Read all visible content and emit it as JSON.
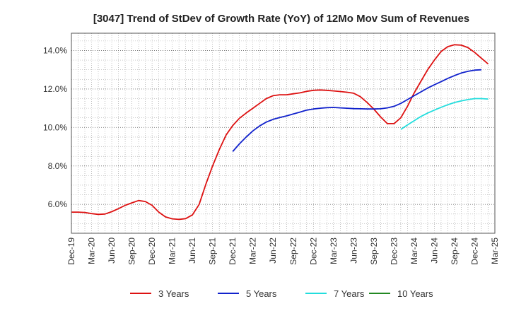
{
  "chart_data": {
    "type": "line",
    "title": "[3047]  Trend of StDev of Growth Rate (YoY) of 12Mo Mov Sum of Revenues",
    "xlabel": "",
    "ylabel": "",
    "ylim": [
      4.5,
      14.9
    ],
    "y_ticks": [
      6.0,
      8.0,
      10.0,
      12.0,
      14.0
    ],
    "y_tick_labels": [
      "6.0%",
      "8.0%",
      "10.0%",
      "12.0%",
      "14.0%"
    ],
    "x_tick_labels": [
      "Dec-19",
      "Mar-20",
      "Jun-20",
      "Sep-20",
      "Dec-20",
      "Mar-21",
      "Jun-21",
      "Sep-21",
      "Dec-21",
      "Mar-22",
      "Jun-22",
      "Sep-22",
      "Dec-22",
      "Mar-23",
      "Jun-23",
      "Sep-23",
      "Dec-23",
      "Mar-24",
      "Jun-24",
      "Sep-24",
      "Dec-24",
      "Mar-25"
    ],
    "grid": true,
    "legend_position": "bottom",
    "series": [
      {
        "name": "3 Years",
        "color": "#dd1111",
        "start_index": 0,
        "values": [
          5.6,
          5.6,
          5.58,
          5.52,
          5.48,
          5.5,
          5.62,
          5.78,
          5.95,
          6.08,
          6.2,
          6.15,
          5.95,
          5.6,
          5.35,
          5.25,
          5.22,
          5.26,
          5.45,
          6.0,
          7.05,
          8.0,
          8.85,
          9.6,
          10.1,
          10.48,
          10.75,
          11.0,
          11.25,
          11.5,
          11.65,
          11.7,
          11.7,
          11.75,
          11.8,
          11.88,
          11.93,
          11.95,
          11.93,
          11.9,
          11.87,
          11.83,
          11.78,
          11.6,
          11.3,
          10.95,
          10.55,
          10.2,
          10.2,
          10.5,
          11.1,
          11.8,
          12.4,
          13.0,
          13.5,
          13.95,
          14.2,
          14.3,
          14.28,
          14.15,
          13.9,
          13.6,
          13.3
        ]
      },
      {
        "name": "5 Years",
        "color": "#1122cc",
        "start_index": 24,
        "values": [
          8.75,
          9.15,
          9.5,
          9.82,
          10.08,
          10.28,
          10.42,
          10.52,
          10.6,
          10.7,
          10.8,
          10.9,
          10.96,
          11.0,
          11.03,
          11.04,
          11.02,
          11.0,
          10.98,
          10.97,
          10.96,
          10.96,
          10.97,
          11.02,
          11.1,
          11.25,
          11.45,
          11.65,
          11.85,
          12.05,
          12.22,
          12.38,
          12.55,
          12.7,
          12.83,
          12.92,
          12.98,
          13.0
        ]
      },
      {
        "name": "7 Years",
        "color": "#22dddd",
        "start_index": 49,
        "values": [
          9.9,
          10.13,
          10.35,
          10.57,
          10.75,
          10.9,
          11.05,
          11.18,
          11.3,
          11.38,
          11.45,
          11.5,
          11.5,
          11.48
        ]
      },
      {
        "name": "10 Years",
        "color": "#228822",
        "start_index": 0,
        "values": []
      }
    ]
  }
}
